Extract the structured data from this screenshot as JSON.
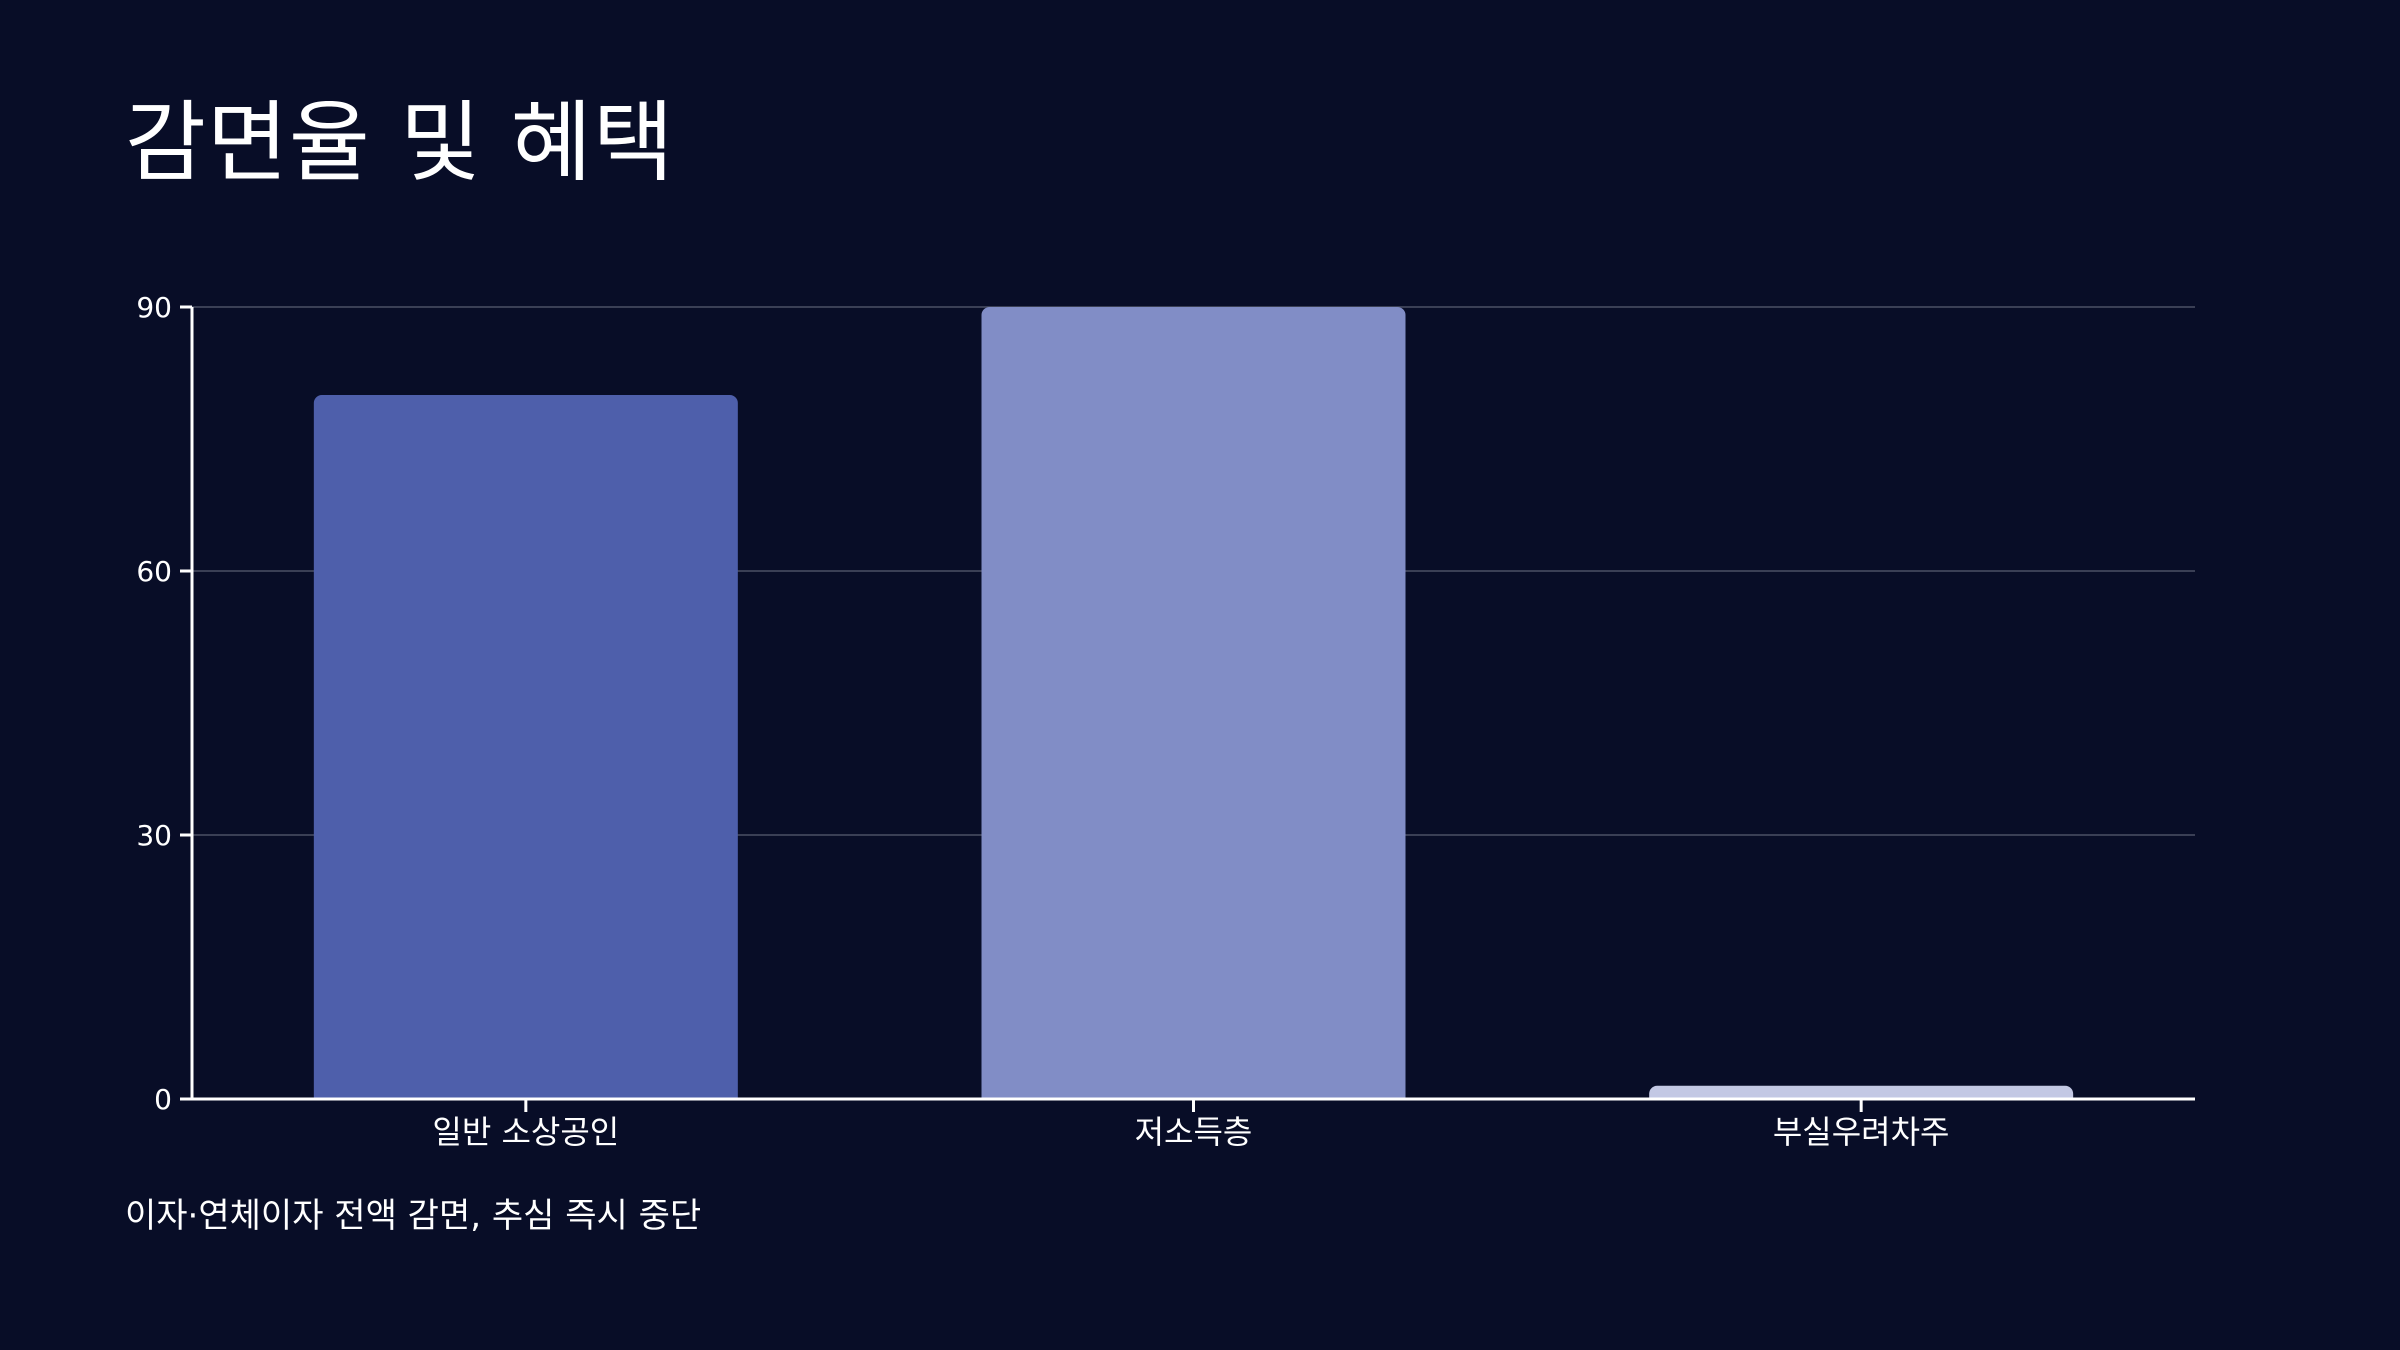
{
  "title": "감면율 및 혜택",
  "subtitle": "이자·연체이자 전액 감면, 추심 즉시 중단",
  "colors": {
    "background": "#080d27",
    "grid": "#3a3f55",
    "axis": "#ffffff",
    "text": "#ffffff",
    "bar_colors": [
      "#4e5fab",
      "#818dc6",
      "#c3c8e4"
    ]
  },
  "chart_data": {
    "type": "bar",
    "title": "감면율 및 혜택",
    "categories": [
      "일반 소상공인",
      "저소득층",
      "부실우려차주"
    ],
    "values": [
      80,
      90,
      1.5
    ],
    "ylim": [
      0,
      90
    ],
    "yticks": [
      0,
      30,
      60,
      90
    ],
    "ytick_labels": [
      "0",
      "30",
      "60",
      "90"
    ],
    "xlabel": "",
    "ylabel": "",
    "grid": true,
    "legend": "none"
  }
}
